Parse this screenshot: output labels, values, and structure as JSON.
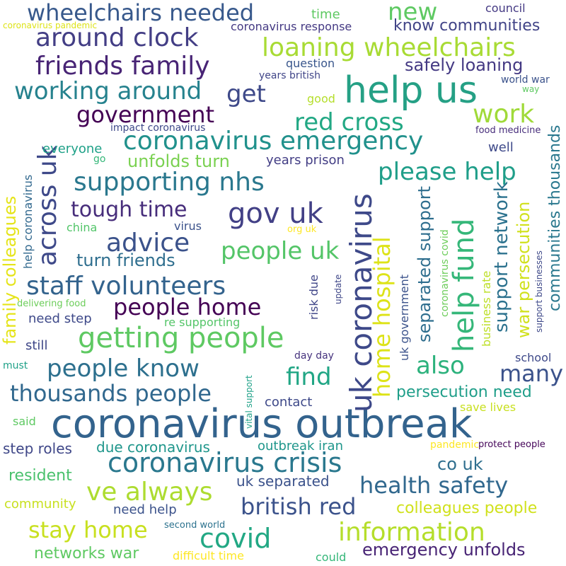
{
  "words": [
    {
      "text": "coronavirus outbreak",
      "color": "#33638d"
    },
    {
      "text": "help us",
      "color": "#25a085"
    },
    {
      "text": "uk coronavirus",
      "color": "#3e4989"
    },
    {
      "text": "gov uk",
      "color": "#424086"
    },
    {
      "text": "getting people",
      "color": "#5ec962"
    },
    {
      "text": "coronavirus crisis",
      "color": "#2a788e"
    },
    {
      "text": "covid",
      "color": "#22a884"
    },
    {
      "text": "information",
      "color": "#b5de2b"
    },
    {
      "text": "ve always",
      "color": "#addc30"
    },
    {
      "text": "staff volunteers",
      "color": "#33638d"
    },
    {
      "text": "wheelchairs needed",
      "color": "#38598c"
    },
    {
      "text": "around clock",
      "color": "#433e85"
    },
    {
      "text": "new",
      "color": "#5ec962"
    },
    {
      "text": "loaning wheelchairs",
      "color": "#a8db34"
    },
    {
      "text": "friends family",
      "color": "#482475"
    },
    {
      "text": "working around",
      "color": "#26828e"
    },
    {
      "text": "get",
      "color": "#3e4989"
    },
    {
      "text": "government",
      "color": "#440154"
    },
    {
      "text": "coronavirus emergency",
      "color": "#21918c"
    },
    {
      "text": "across uk",
      "color": "#3e4989"
    },
    {
      "text": "supporting nhs",
      "color": "#2a788e"
    },
    {
      "text": "tough time",
      "color": "#472d7b"
    },
    {
      "text": "advice",
      "color": "#3b528b"
    },
    {
      "text": "people home",
      "color": "#440154"
    },
    {
      "text": "people know",
      "color": "#2d708e"
    },
    {
      "text": "thousands people",
      "color": "#31688e"
    },
    {
      "text": "stay home",
      "color": "#c8e020"
    },
    {
      "text": "british red",
      "color": "#3b528b"
    },
    {
      "text": "health safety",
      "color": "#31688e"
    },
    {
      "text": "help fund",
      "color": "#35b779"
    },
    {
      "text": "home hospital",
      "color": "#dde318"
    },
    {
      "text": "red cross",
      "color": "#22a884"
    },
    {
      "text": "work",
      "color": "#a0da39"
    },
    {
      "text": "please help",
      "color": "#1f9e89"
    },
    {
      "text": "people uk",
      "color": "#54c568"
    },
    {
      "text": "find",
      "color": "#21a685"
    },
    {
      "text": "also",
      "color": "#2db27d"
    },
    {
      "text": "many",
      "color": "#3b528b"
    },
    {
      "text": "emergency unfolds",
      "color": "#482475"
    },
    {
      "text": "colleagues people",
      "color": "#d0e11c"
    },
    {
      "text": "family colleagues",
      "color": "#e5e419"
    },
    {
      "text": "separated support",
      "color": "#2e6e8e"
    },
    {
      "text": "support network",
      "color": "#2c728e"
    },
    {
      "text": "war persecution",
      "color": "#d0e11c"
    },
    {
      "text": "communities thousands",
      "color": "#2a788e"
    },
    {
      "text": "safely loaning",
      "color": "#443983"
    },
    {
      "text": "know communities",
      "color": "#414487"
    },
    {
      "text": "unfolds turn",
      "color": "#7ad151"
    },
    {
      "text": "turn friends",
      "color": "#2e6e8e"
    },
    {
      "text": "persecution need",
      "color": "#1f9e89"
    },
    {
      "text": "due coronavirus",
      "color": "#1f968b"
    },
    {
      "text": "networks war",
      "color": "#5ec962"
    },
    {
      "text": "resident",
      "color": "#4ac16d"
    },
    {
      "text": "co uk",
      "color": "#2e6e8e"
    },
    {
      "text": "uk separated",
      "color": "#3b528b"
    },
    {
      "text": "step roles",
      "color": "#3f4788"
    },
    {
      "text": "outbreak iran",
      "color": "#1f968b"
    },
    {
      "text": "contact",
      "color": "#3e4989"
    },
    {
      "text": "need help",
      "color": "#3b528b"
    },
    {
      "text": "community",
      "color": "#c8e020"
    },
    {
      "text": "everyone",
      "color": "#1fa188"
    },
    {
      "text": "coronavirus response",
      "color": "#443983"
    },
    {
      "text": "council",
      "color": "#443983"
    },
    {
      "text": "time",
      "color": "#5ec962"
    },
    {
      "text": "question",
      "color": "#39568c"
    },
    {
      "text": "years british",
      "color": "#404588"
    },
    {
      "text": "world war",
      "color": "#3b528b"
    },
    {
      "text": "way",
      "color": "#5ec962"
    },
    {
      "text": "good",
      "color": "#b5de2b"
    },
    {
      "text": "impact coronavirus",
      "color": "#3e4989"
    },
    {
      "text": "food medicine",
      "color": "#472d7b"
    },
    {
      "text": "well",
      "color": "#3e4989"
    },
    {
      "text": "years prison",
      "color": "#433e85"
    },
    {
      "text": "go",
      "color": "#35b779"
    },
    {
      "text": "help coronavirus",
      "color": "#31688e"
    },
    {
      "text": "china",
      "color": "#52c569"
    },
    {
      "text": "virus",
      "color": "#3b528b"
    },
    {
      "text": "org uk",
      "color": "#fde725"
    },
    {
      "text": "risk due",
      "color": "#404688"
    },
    {
      "text": "update",
      "color": "#3f4788"
    },
    {
      "text": "uk government",
      "color": "#3b528b"
    },
    {
      "text": "coronavirus covid",
      "color": "#6ccd5a"
    },
    {
      "text": "business rate",
      "color": "#bddf26"
    },
    {
      "text": "support businesses",
      "color": "#3e4989"
    },
    {
      "text": "need step",
      "color": "#3e4989"
    },
    {
      "text": "re supporting",
      "color": "#54c568"
    },
    {
      "text": "still",
      "color": "#3f4788"
    },
    {
      "text": "day day",
      "color": "#46337e"
    },
    {
      "text": "school",
      "color": "#3e4989"
    },
    {
      "text": "must",
      "color": "#1fa188"
    },
    {
      "text": "vital support",
      "color": "#1fa188"
    },
    {
      "text": "said",
      "color": "#5ec962"
    },
    {
      "text": "save lives",
      "color": "#c8e020"
    },
    {
      "text": "pandemic",
      "color": "#fde725"
    },
    {
      "text": "protect people",
      "color": "#450559"
    },
    {
      "text": "second world",
      "color": "#2c728e"
    },
    {
      "text": "difficult time",
      "color": "#fde725"
    },
    {
      "text": "could",
      "color": "#35b779"
    },
    {
      "text": "delivering food",
      "color": "#6ccd5a"
    },
    {
      "text": "coronavirus pandemic",
      "color": "#dde318"
    }
  ]
}
